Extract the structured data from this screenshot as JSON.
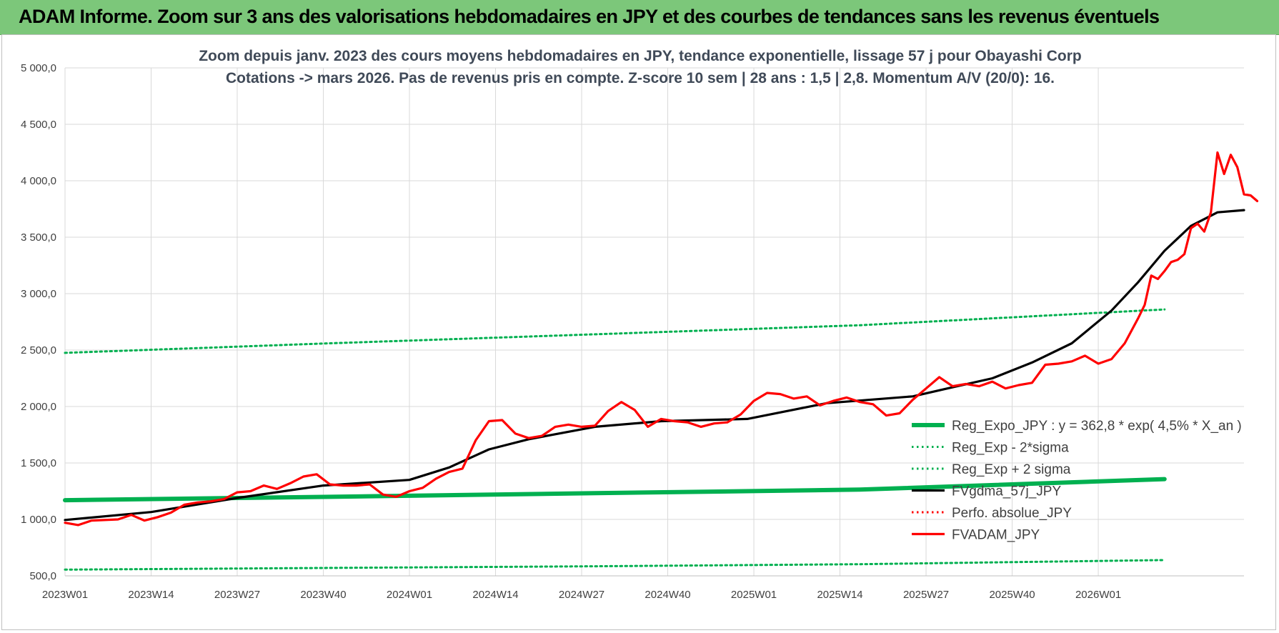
{
  "header": {
    "title": "ADAM Informe. Zoom sur 3 ans des valorisations hebdomadaires en JPY et des courbes de tendances sans les revenus éventuels"
  },
  "chart_data": {
    "type": "line",
    "title_line1": "Zoom depuis janv. 2023 des cours moyens hebdomadaires en JPY, tendance exponentielle, lissage 57 j pour Obayashi Corp",
    "title_line2": "Cotations -> mars 2026. Pas de revenus pris en compte. Z-score 10 sem | 28 ans : 1,5 | 2,8. Momentum A/V (20/0): 16.",
    "x_tick_labels": [
      "2023W01",
      "2023W14",
      "2023W27",
      "2023W40",
      "2024W01",
      "2024W14",
      "2024W27",
      "2024W40",
      "2025W01",
      "2025W14",
      "2025W27",
      "2025W40",
      "2026W01"
    ],
    "y_tick_labels": [
      "500,0",
      "1 000,0",
      "1 500,0",
      "2 000,0",
      "2 500,0",
      "3 000,0",
      "3 500,0",
      "4 000,0",
      "4 500,0",
      "5 000,0"
    ],
    "ylim": [
      500,
      5000
    ],
    "x_week_index_range": [
      0,
      166
    ],
    "grid": true,
    "legend_position": "bottom-right",
    "series": [
      {
        "name": "Reg_Expo_JPY : y = 362,8 * exp( 4,5% *  X_an )",
        "color": "#00b050",
        "style": "solid-thick",
        "points": [
          [
            0,
            1170
          ],
          [
            40,
            1200
          ],
          [
            80,
            1232
          ],
          [
            120,
            1264
          ],
          [
            166,
            1357
          ]
        ]
      },
      {
        "name": "Reg_Exp - 2*sigma",
        "color": "#00b050",
        "style": "dotted",
        "points": [
          [
            0,
            555
          ],
          [
            40,
            570
          ],
          [
            80,
            585
          ],
          [
            120,
            603
          ],
          [
            166,
            640
          ]
        ]
      },
      {
        "name": "Reg_Exp + 2 sigma",
        "color": "#00b050",
        "style": "dotted",
        "points": [
          [
            0,
            2475
          ],
          [
            40,
            2560
          ],
          [
            80,
            2640
          ],
          [
            120,
            2720
          ],
          [
            166,
            2860
          ]
        ]
      },
      {
        "name": "FVgdma_57j_JPY",
        "color": "#000000",
        "style": "solid",
        "points": [
          [
            0,
            995
          ],
          [
            13,
            1065
          ],
          [
            26,
            1190
          ],
          [
            39,
            1300
          ],
          [
            52,
            1350
          ],
          [
            58,
            1460
          ],
          [
            64,
            1620
          ],
          [
            70,
            1710
          ],
          [
            80,
            1820
          ],
          [
            90,
            1870
          ],
          [
            103,
            1890
          ],
          [
            115,
            2030
          ],
          [
            128,
            2090
          ],
          [
            134,
            2170
          ],
          [
            140,
            2250
          ],
          [
            146,
            2390
          ],
          [
            152,
            2560
          ],
          [
            158,
            2850
          ],
          [
            162,
            3100
          ],
          [
            166,
            3380
          ],
          [
            170,
            3600
          ],
          [
            174,
            3720
          ],
          [
            178,
            3740
          ]
        ]
      },
      {
        "name": "Perfo. absolue_JPY",
        "color": "#ff0000",
        "style": "dotted",
        "points": []
      },
      {
        "name": "FVADAM_JPY",
        "color": "#ff0000",
        "style": "solid",
        "points": [
          [
            0,
            970
          ],
          [
            2,
            950
          ],
          [
            4,
            990
          ],
          [
            8,
            1000
          ],
          [
            10,
            1040
          ],
          [
            12,
            990
          ],
          [
            14,
            1020
          ],
          [
            16,
            1060
          ],
          [
            18,
            1130
          ],
          [
            20,
            1150
          ],
          [
            22,
            1160
          ],
          [
            24,
            1180
          ],
          [
            26,
            1240
          ],
          [
            28,
            1250
          ],
          [
            30,
            1300
          ],
          [
            32,
            1270
          ],
          [
            34,
            1320
          ],
          [
            36,
            1380
          ],
          [
            38,
            1400
          ],
          [
            40,
            1310
          ],
          [
            42,
            1300
          ],
          [
            44,
            1300
          ],
          [
            46,
            1310
          ],
          [
            48,
            1220
          ],
          [
            50,
            1200
          ],
          [
            52,
            1250
          ],
          [
            54,
            1280
          ],
          [
            56,
            1360
          ],
          [
            58,
            1420
          ],
          [
            60,
            1450
          ],
          [
            62,
            1700
          ],
          [
            64,
            1870
          ],
          [
            66,
            1880
          ],
          [
            68,
            1760
          ],
          [
            70,
            1720
          ],
          [
            72,
            1740
          ],
          [
            74,
            1820
          ],
          [
            76,
            1840
          ],
          [
            78,
            1820
          ],
          [
            80,
            1830
          ],
          [
            82,
            1960
          ],
          [
            84,
            2040
          ],
          [
            86,
            1970
          ],
          [
            88,
            1820
          ],
          [
            90,
            1890
          ],
          [
            92,
            1870
          ],
          [
            94,
            1860
          ],
          [
            96,
            1820
          ],
          [
            98,
            1850
          ],
          [
            100,
            1860
          ],
          [
            102,
            1930
          ],
          [
            104,
            2050
          ],
          [
            106,
            2120
          ],
          [
            108,
            2110
          ],
          [
            110,
            2070
          ],
          [
            112,
            2090
          ],
          [
            114,
            2010
          ],
          [
            116,
            2050
          ],
          [
            118,
            2080
          ],
          [
            120,
            2040
          ],
          [
            122,
            2020
          ],
          [
            124,
            1920
          ],
          [
            126,
            1940
          ],
          [
            128,
            2060
          ],
          [
            130,
            2160
          ],
          [
            132,
            2260
          ],
          [
            134,
            2180
          ],
          [
            136,
            2200
          ],
          [
            138,
            2180
          ],
          [
            140,
            2220
          ],
          [
            142,
            2160
          ],
          [
            144,
            2190
          ],
          [
            146,
            2210
          ],
          [
            148,
            2370
          ],
          [
            150,
            2380
          ],
          [
            152,
            2400
          ],
          [
            154,
            2450
          ],
          [
            156,
            2380
          ],
          [
            158,
            2420
          ],
          [
            160,
            2560
          ],
          [
            162,
            2780
          ],
          [
            163,
            2900
          ],
          [
            164,
            3160
          ],
          [
            165,
            3130
          ],
          [
            166,
            3200
          ],
          [
            167,
            3280
          ],
          [
            168,
            3300
          ],
          [
            169,
            3350
          ],
          [
            170,
            3580
          ],
          [
            171,
            3620
          ],
          [
            172,
            3550
          ],
          [
            173,
            3720
          ],
          [
            174,
            4250
          ],
          [
            175,
            4060
          ],
          [
            176,
            4230
          ],
          [
            177,
            4120
          ],
          [
            178,
            3880
          ],
          [
            179,
            3870
          ],
          [
            180,
            3820
          ]
        ]
      }
    ]
  }
}
